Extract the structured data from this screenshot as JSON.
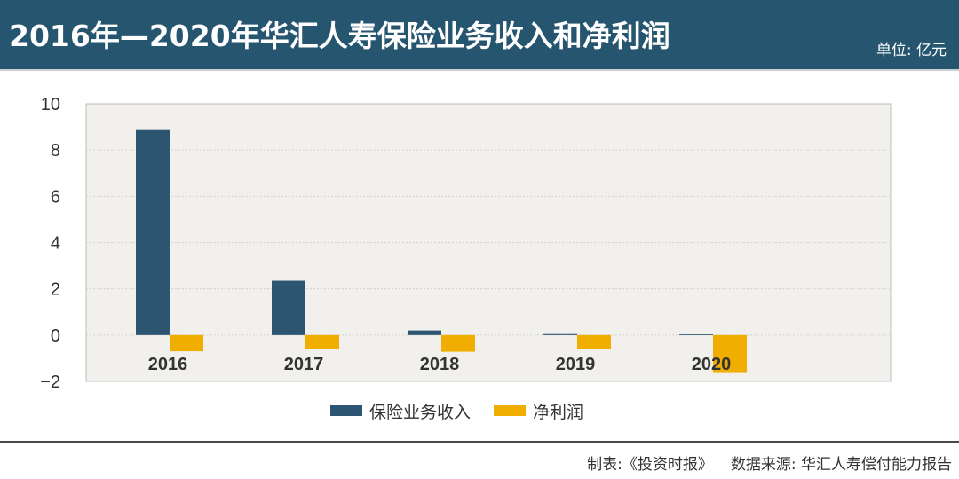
{
  "header": {
    "title": "2016年—2020年华汇人寿保险业务收入和净利润",
    "unit": "单位: 亿元",
    "bg_color": "#25556f"
  },
  "footer": {
    "made_by": "制表:《投资时报》",
    "source": "数据来源: 华汇人寿偿付能力报告"
  },
  "chart_data": {
    "type": "bar",
    "title": "2016年—2020年华汇人寿保险业务收入和净利润",
    "xlabel": "",
    "ylabel": "",
    "categories": [
      "2016",
      "2017",
      "2018",
      "2019",
      "2020"
    ],
    "series": [
      {
        "name": "保险业务收入",
        "color": "#2b5570",
        "values": [
          8.9,
          2.35,
          0.2,
          0.08,
          0.04
        ]
      },
      {
        "name": "净利润",
        "color": "#f0ae00",
        "values": [
          -0.7,
          -0.58,
          -0.72,
          -0.6,
          -1.6
        ]
      }
    ],
    "ylim": [
      -2,
      10
    ],
    "yticks": [
      10,
      8,
      6,
      4,
      2,
      0,
      -2
    ],
    "ytick_labels": [
      "10",
      "8",
      "6",
      "4",
      "2",
      "0",
      "−2"
    ],
    "grid": true,
    "legend_position": "bottom",
    "plot_bg": "#f1f0ec"
  }
}
